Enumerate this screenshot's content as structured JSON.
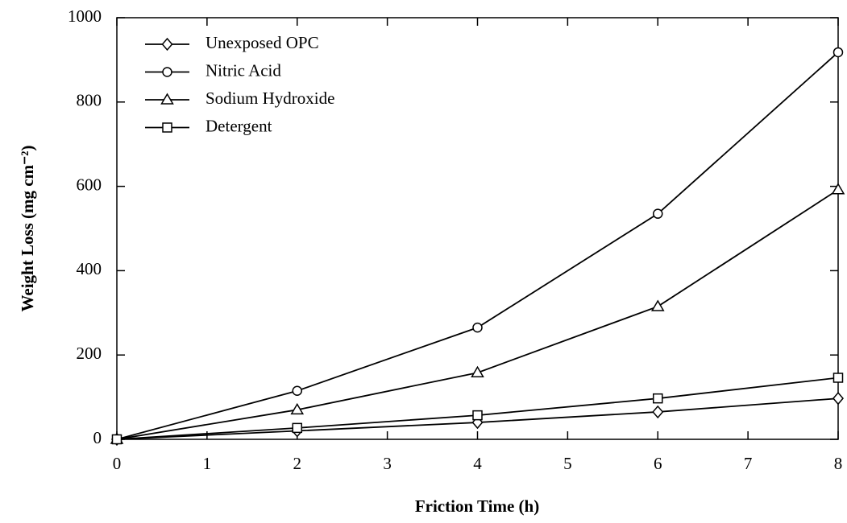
{
  "chart_data": {
    "type": "line",
    "x_label": "Friction Time (h)",
    "y_label": "Weight Loss (mg cm⁻²)",
    "x": [
      0,
      2,
      4,
      6,
      8
    ],
    "series": [
      {
        "name": "Unexposed OPC",
        "color": "#000000",
        "marker": "diamond",
        "values": [
          0,
          20,
          40,
          65,
          97
        ]
      },
      {
        "name": "Nitric Acid",
        "color": "#000000",
        "marker": "circle",
        "values": [
          0,
          115,
          265,
          535,
          918
        ]
      },
      {
        "name": "Sodium Hydroxide",
        "color": "#000000",
        "marker": "triangle",
        "values": [
          0,
          70,
          158,
          315,
          592
        ]
      },
      {
        "name": "Detergent",
        "color": "#000000",
        "marker": "square",
        "values": [
          0,
          27,
          57,
          97,
          146
        ]
      }
    ],
    "xlim": [
      0,
      8
    ],
    "xticks": [
      0,
      1,
      2,
      3,
      4,
      5,
      6,
      7,
      8
    ],
    "ylim": [
      0,
      1000
    ],
    "yticks": [
      0,
      200,
      400,
      600,
      800,
      1000
    ],
    "legend": "upper left",
    "grid": false
  }
}
